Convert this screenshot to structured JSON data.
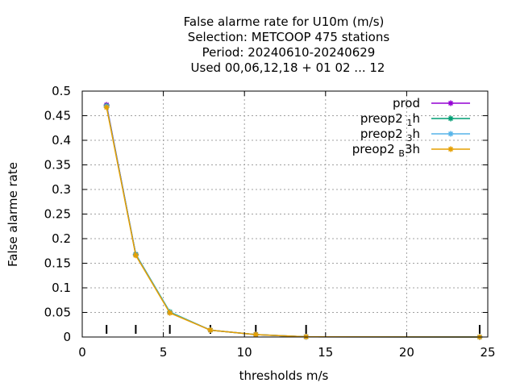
{
  "chart_data": {
    "type": "line",
    "title_lines": [
      "False alarme rate  for U10m (m/s)",
      "Selection: METCOOP    475 stations",
      "Period: 20240610-20240629",
      "Used  00,06,12,18 + 01 02 ... 12"
    ],
    "xlabel": "thresholds m/s",
    "ylabel": "False alarme rate",
    "xlim": [
      0,
      25
    ],
    "ylim": [
      0,
      0.5
    ],
    "xticks": [
      0,
      5,
      10,
      15,
      20,
      25
    ],
    "xtick_labels": [
      "0",
      "5",
      "10",
      "15",
      "20",
      "25"
    ],
    "yticks": [
      0,
      0.05,
      0.1,
      0.15,
      0.2,
      0.25,
      0.3,
      0.35,
      0.4,
      0.45,
      0.5
    ],
    "ytick_labels": [
      "0",
      "0.05",
      "0.1",
      "0.15",
      "0.2",
      "0.25",
      "0.3",
      "0.35",
      "0.4",
      "0.45",
      "0.5"
    ],
    "grid": true,
    "legend_position": "top-right",
    "threshold_markers": [
      1.5,
      3.3,
      5.4,
      7.9,
      10.7,
      13.8,
      24.5
    ],
    "x": [
      1.5,
      3.3,
      5.4,
      7.9,
      10.7,
      13.8,
      24.5
    ],
    "series": [
      {
        "name": "prod",
        "legend_parts": [
          "prod"
        ],
        "color": "#9400d3",
        "values": [
          0.472,
          0.168,
          0.05,
          0.014,
          0.005,
          0.0005,
          0.0
        ]
      },
      {
        "name": "preop2_1h",
        "legend_parts": [
          "preop2 ",
          "1",
          "h"
        ],
        "color": "#009e73",
        "values": [
          0.47,
          0.168,
          0.051,
          0.014,
          0.005,
          0.0005,
          0.0
        ]
      },
      {
        "name": "preop2_3h",
        "legend_parts": [
          "preop2 ",
          "3",
          "h"
        ],
        "color": "#56b4e9",
        "values": [
          0.469,
          0.167,
          0.05,
          0.014,
          0.005,
          0.0005,
          0.0
        ]
      },
      {
        "name": "preop2_B3h",
        "legend_parts": [
          "preop2 ",
          "B",
          "3h"
        ],
        "color": "#e69f00",
        "values": [
          0.467,
          0.166,
          0.049,
          0.014,
          0.005,
          0.0005,
          0.0
        ]
      }
    ]
  }
}
